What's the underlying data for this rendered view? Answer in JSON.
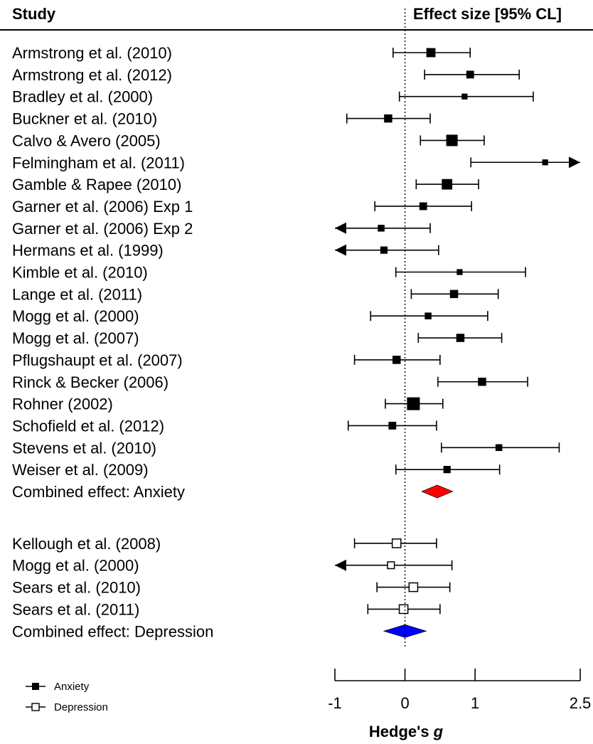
{
  "chart_data": {
    "type": "forest",
    "header_left": "Study",
    "header_right": "Effect size [95% CL]",
    "xlabel_main": "Hedge's",
    "xlabel_italic": "g",
    "xlim": [
      -1,
      2.5
    ],
    "ticks": [
      {
        "value": -1,
        "label": "-1"
      },
      {
        "value": 0,
        "label": "0"
      },
      {
        "value": 1,
        "label": "1"
      },
      {
        "value": 2.5,
        "label": "2.5"
      }
    ],
    "reference_line": 0,
    "legend": [
      {
        "label": "Anxiety",
        "marker": "filled-square"
      },
      {
        "label": "Depression",
        "marker": "open-square"
      }
    ],
    "colors": {
      "anxiety_combined": "#ff0000",
      "depression_combined": "#0000ff",
      "marker": "#000000"
    },
    "studies": [
      {
        "label": "Armstrong et al. (2010)",
        "group": "anxiety",
        "est": 0.37,
        "lo": -0.17,
        "hi": 0.93,
        "weight": 0.6
      },
      {
        "label": "Armstrong et al. (2012)",
        "group": "anxiety",
        "est": 0.93,
        "lo": 0.28,
        "hi": 1.63,
        "weight": 0.45
      },
      {
        "label": "Bradley et al. (2000)",
        "group": "anxiety",
        "est": 0.85,
        "lo": -0.08,
        "hi": 1.83,
        "weight": 0.25
      },
      {
        "label": "Buckner et al. (2010)",
        "group": "anxiety",
        "est": -0.24,
        "lo": -0.83,
        "hi": 0.36,
        "weight": 0.5
      },
      {
        "label": "Calvo & Avero (2005)",
        "group": "anxiety",
        "est": 0.67,
        "lo": 0.22,
        "hi": 1.13,
        "weight": 0.85
      },
      {
        "label": "Felmingham et al. (2011)",
        "group": "anxiety",
        "est": 2.0,
        "lo": 0.94,
        "hi": 2.5,
        "hi_arrow": true,
        "weight": 0.25
      },
      {
        "label": "Gamble & Rapee (2010)",
        "group": "anxiety",
        "est": 0.6,
        "lo": 0.16,
        "hi": 1.05,
        "weight": 0.75
      },
      {
        "label": "Garner et al. (2006) Exp 1",
        "group": "anxiety",
        "est": 0.26,
        "lo": -0.43,
        "hi": 0.95,
        "weight": 0.45
      },
      {
        "label": "Garner et al. (2006) Exp 2",
        "group": "anxiety",
        "est": -0.34,
        "lo": -1.0,
        "lo_arrow": true,
        "hi": 0.36,
        "weight": 0.35
      },
      {
        "label": "Hermans et al. (1999)",
        "group": "anxiety",
        "est": -0.3,
        "lo": -1.0,
        "lo_arrow": true,
        "hi": 0.48,
        "weight": 0.4
      },
      {
        "label": "Kimble et al. (2010)",
        "group": "anxiety",
        "est": 0.78,
        "lo": -0.13,
        "hi": 1.72,
        "weight": 0.25
      },
      {
        "label": "Lange et al. (2011)",
        "group": "anxiety",
        "est": 0.7,
        "lo": 0.09,
        "hi": 1.33,
        "weight": 0.5
      },
      {
        "label": "Mogg et al. (2000)",
        "group": "anxiety",
        "est": 0.33,
        "lo": -0.49,
        "hi": 1.18,
        "weight": 0.35
      },
      {
        "label": "Mogg et al. (2007)",
        "group": "anxiety",
        "est": 0.79,
        "lo": 0.19,
        "hi": 1.38,
        "weight": 0.5
      },
      {
        "label": "Pflugshaupt et al. (2007)",
        "group": "anxiety",
        "est": -0.12,
        "lo": -0.72,
        "hi": 0.5,
        "weight": 0.5
      },
      {
        "label": "Rinck & Becker (2006)",
        "group": "anxiety",
        "est": 1.1,
        "lo": 0.47,
        "hi": 1.75,
        "weight": 0.5
      },
      {
        "label": "Rohner (2002)",
        "group": "anxiety",
        "est": 0.12,
        "lo": -0.28,
        "hi": 0.54,
        "weight": 1.0
      },
      {
        "label": "Schofield et al. (2012)",
        "group": "anxiety",
        "est": -0.18,
        "lo": -0.81,
        "hi": 0.45,
        "weight": 0.45
      },
      {
        "label": "Stevens et al. (2010)",
        "group": "anxiety",
        "est": 1.34,
        "lo": 0.52,
        "hi": 2.2,
        "weight": 0.35
      },
      {
        "label": "Weiser et al. (2009)",
        "group": "anxiety",
        "est": 0.6,
        "lo": -0.13,
        "hi": 1.35,
        "weight": 0.4
      },
      {
        "label": "Combined effect: Anxiety",
        "group": "anxiety",
        "combined": true,
        "est": 0.46,
        "lo": 0.24,
        "hi": 0.68
      },
      {
        "label": "Kellough et al. (2008)",
        "group": "depression",
        "est": -0.12,
        "lo": -0.72,
        "hi": 0.45,
        "weight": 0.55
      },
      {
        "label": "Mogg et al. (2000)",
        "group": "depression",
        "est": -0.2,
        "lo": -1.0,
        "lo_arrow": true,
        "hi": 0.67,
        "weight": 0.35
      },
      {
        "label": "Sears et al. (2010)",
        "group": "depression",
        "est": 0.12,
        "lo": -0.4,
        "hi": 0.64,
        "weight": 0.55
      },
      {
        "label": "Sears et al. (2011)",
        "group": "depression",
        "est": -0.02,
        "lo": -0.53,
        "hi": 0.5,
        "weight": 0.55
      },
      {
        "label": "Combined effect: Depression",
        "group": "depression",
        "combined": true,
        "est": 0.0,
        "lo": -0.3,
        "hi": 0.3
      }
    ]
  }
}
